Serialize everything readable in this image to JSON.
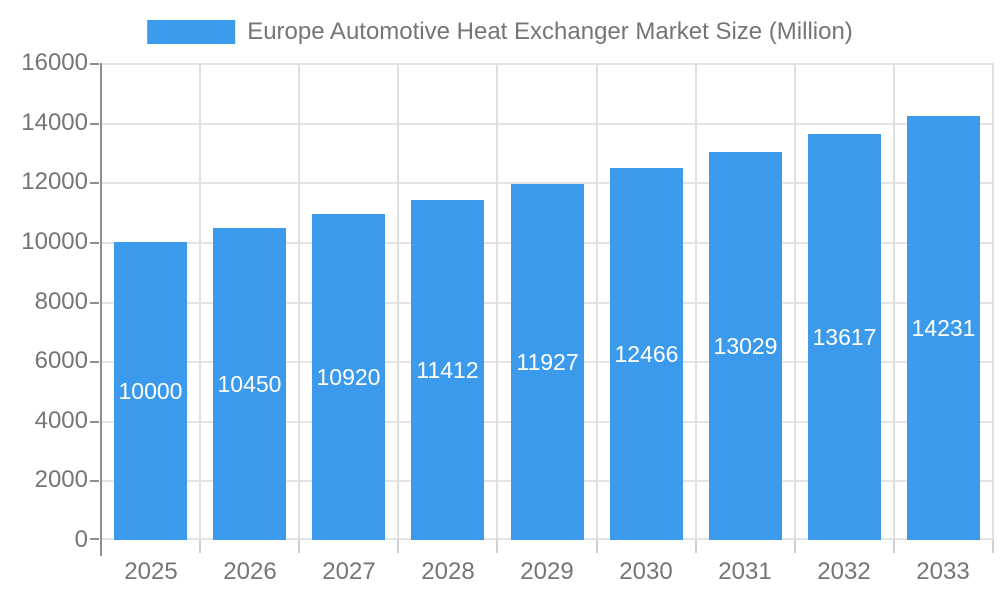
{
  "legend": {
    "label": "Europe Automotive Heat Exchanger Market Size (Million)"
  },
  "chart_data": {
    "type": "bar",
    "title": "Europe Automotive Heat Exchanger Market Size (Million)",
    "categories": [
      "2025",
      "2026",
      "2027",
      "2028",
      "2029",
      "2030",
      "2031",
      "2032",
      "2033"
    ],
    "values": [
      10000,
      10450,
      10920,
      11412,
      11927,
      12466,
      13029,
      13617,
      14231
    ],
    "xlabel": "",
    "ylabel": "",
    "ylim": [
      0,
      16000
    ],
    "ytick_step": 2000,
    "ytick_labels": [
      "0",
      "2000",
      "4000",
      "6000",
      "8000",
      "10000",
      "12000",
      "14000",
      "16000"
    ],
    "value_labels_shown": true,
    "grid": true,
    "legend_position": "top",
    "style": {
      "bar_color": "#3B9AEC",
      "value_label_color": "#FFFFFF",
      "axis_text_color": "#757575",
      "hgrid_color": "#E4E4E4",
      "vgrid_color": "#DFDFDF",
      "yaxis_color": "#8F8F8F",
      "xtick_color": "#CFCFCF",
      "background": "#FFFFFF"
    }
  }
}
